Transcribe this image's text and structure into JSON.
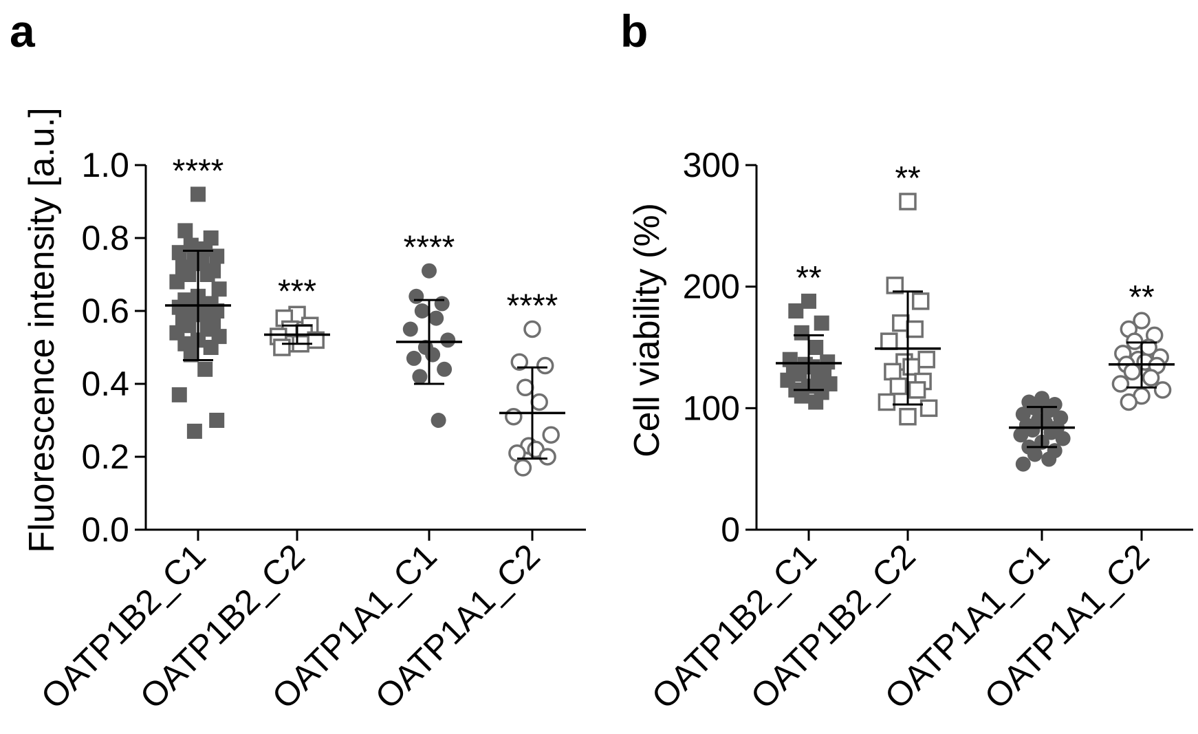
{
  "chart_data": [
    {
      "type": "scatter",
      "panel_label": "a",
      "ylabel": "Fluorescence intensity [a.u.]",
      "ylim": [
        0,
        1.0
      ],
      "yticks": [
        0.0,
        0.2,
        0.4,
        0.6,
        0.8,
        1.0
      ],
      "ytick_labels": [
        "0.0",
        "0.2",
        "0.4",
        "0.6",
        "0.8",
        "1.0"
      ],
      "categories": [
        "OATP1B2_C1",
        "OATP1B2_C2",
        "OATP1A1_C1",
        "OATP1A1_C2"
      ],
      "series": [
        {
          "name": "OATP1B2_C1",
          "marker": "square",
          "filled": true,
          "color": "#606060",
          "mean": 0.615,
          "sd_low": 0.465,
          "sd_high": 0.765,
          "significance": "****",
          "values": [
            0.92,
            0.82,
            0.8,
            0.78,
            0.77,
            0.76,
            0.75,
            0.74,
            0.73,
            0.72,
            0.71,
            0.7,
            0.7,
            0.68,
            0.66,
            0.64,
            0.63,
            0.62,
            0.62,
            0.61,
            0.61,
            0.6,
            0.6,
            0.59,
            0.58,
            0.57,
            0.56,
            0.55,
            0.54,
            0.53,
            0.52,
            0.51,
            0.5,
            0.48,
            0.44,
            0.37,
            0.3,
            0.27
          ]
        },
        {
          "name": "OATP1B2_C2",
          "marker": "square",
          "filled": false,
          "color": "#707070",
          "mean": 0.535,
          "sd_low": 0.51,
          "sd_high": 0.56,
          "significance": "***",
          "values": [
            0.59,
            0.58,
            0.56,
            0.55,
            0.54,
            0.53,
            0.52,
            0.51,
            0.51,
            0.5
          ]
        },
        {
          "name": "OATP1A1_C1",
          "marker": "circle",
          "filled": true,
          "color": "#606060",
          "mean": 0.515,
          "sd_low": 0.4,
          "sd_high": 0.63,
          "significance": "****",
          "values": [
            0.71,
            0.64,
            0.62,
            0.6,
            0.58,
            0.55,
            0.52,
            0.5,
            0.48,
            0.47,
            0.44,
            0.42,
            0.3
          ]
        },
        {
          "name": "OATP1A1_C2",
          "marker": "circle",
          "filled": false,
          "color": "#707070",
          "mean": 0.32,
          "sd_low": 0.195,
          "sd_high": 0.445,
          "significance": "****",
          "values": [
            0.55,
            0.46,
            0.45,
            0.39,
            0.35,
            0.31,
            0.26,
            0.23,
            0.22,
            0.21,
            0.2,
            0.17
          ]
        }
      ]
    },
    {
      "type": "scatter",
      "panel_label": "b",
      "ylabel": "Cell viability (%)",
      "ylim": [
        0,
        300
      ],
      "yticks": [
        0,
        100,
        200,
        300
      ],
      "ytick_labels": [
        "0",
        "100",
        "200",
        "300"
      ],
      "categories": [
        "OATP1B2_C1",
        "OATP1B2_C2",
        "OATP1A1_C1",
        "OATP1A1_C2"
      ],
      "series": [
        {
          "name": "OATP1B2_C1",
          "marker": "square",
          "filled": true,
          "color": "#606060",
          "mean": 137,
          "sd_low": 115,
          "sd_high": 160,
          "significance": "**",
          "values": [
            188,
            180,
            170,
            162,
            150,
            140,
            138,
            136,
            134,
            132,
            130,
            128,
            125,
            123,
            120,
            118,
            115,
            113,
            110,
            105
          ]
        },
        {
          "name": "OATP1B2_C2",
          "marker": "square",
          "filled": false,
          "color": "#707070",
          "mean": 149,
          "sd_low": 103,
          "sd_high": 196,
          "significance": "**",
          "values": [
            270,
            201,
            188,
            170,
            165,
            155,
            140,
            138,
            134,
            130,
            122,
            118,
            115,
            105,
            100,
            93
          ]
        },
        {
          "name": "OATP1A1_C1",
          "marker": "circle",
          "filled": true,
          "color": "#606060",
          "mean": 84,
          "sd_low": 68,
          "sd_high": 101,
          "significance": "",
          "values": [
            108,
            105,
            103,
            100,
            98,
            95,
            92,
            90,
            88,
            86,
            84,
            82,
            80,
            78,
            75,
            72,
            68,
            65,
            62,
            58,
            54
          ]
        },
        {
          "name": "OATP1A1_C2",
          "marker": "circle",
          "filled": false,
          "color": "#707070",
          "mean": 136,
          "sd_low": 117,
          "sd_high": 154,
          "significance": "**",
          "values": [
            172,
            165,
            160,
            155,
            150,
            145,
            142,
            140,
            138,
            136,
            135,
            130,
            125,
            120,
            115,
            110,
            105
          ]
        }
      ]
    }
  ]
}
